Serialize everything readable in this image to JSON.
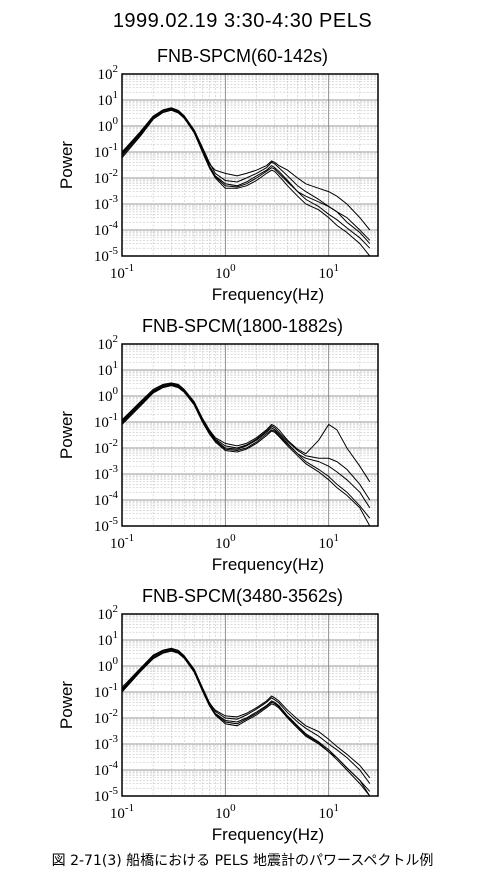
{
  "figure": {
    "title": "1999.02.19 3:30-4:30  PELS",
    "caption": "図 2-71(3)  船橋における PELS 地震計のパワースペクトル例"
  },
  "chart_data": [
    {
      "type": "line",
      "title": "FNB-SPCM(60-142s)",
      "xlabel": "Frequency(Hz)",
      "ylabel": "Power",
      "x_scale": "log",
      "y_scale": "log",
      "xlim": [
        0.1,
        30
      ],
      "ylim": [
        1e-05,
        100
      ],
      "xticks": [
        "10-1",
        "100",
        "101"
      ],
      "yticks": [
        "102",
        "101",
        "100",
        "10-1",
        "10-2",
        "10-3",
        "10-4",
        "10-5"
      ],
      "grid": true,
      "series": [
        {
          "x": [
            0.1,
            0.15,
            0.2,
            0.25,
            0.3,
            0.35,
            0.4,
            0.5,
            0.6,
            0.7,
            0.8,
            1,
            1.3,
            1.6,
            2,
            2.5,
            2.8,
            3,
            3.3,
            4,
            5,
            6,
            8,
            10,
            12,
            15,
            20,
            25
          ],
          "y": [
            0.08,
            0.5,
            2,
            3.8,
            4.5,
            3.6,
            2.2,
            0.6,
            0.12,
            0.03,
            0.012,
            0.006,
            0.005,
            0.007,
            0.012,
            0.02,
            0.03,
            0.025,
            0.018,
            0.008,
            0.003,
            0.0015,
            0.0008,
            0.0004,
            0.00025,
            0.00012,
            5e-05,
            2e-05
          ]
        },
        {
          "x": [
            0.1,
            0.15,
            0.2,
            0.25,
            0.3,
            0.35,
            0.4,
            0.5,
            0.6,
            0.7,
            0.8,
            1,
            1.3,
            1.6,
            2,
            2.5,
            2.8,
            3,
            3.3,
            4,
            5,
            6,
            8,
            10,
            12,
            15,
            20,
            25
          ],
          "y": [
            0.1,
            0.6,
            2.4,
            4.2,
            5,
            4,
            2.5,
            0.7,
            0.15,
            0.04,
            0.015,
            0.008,
            0.007,
            0.01,
            0.015,
            0.025,
            0.04,
            0.035,
            0.025,
            0.012,
            0.005,
            0.003,
            0.0015,
            0.0008,
            0.0005,
            0.0002,
            8e-05,
            3e-05
          ]
        },
        {
          "x": [
            0.1,
            0.15,
            0.2,
            0.25,
            0.3,
            0.35,
            0.4,
            0.5,
            0.6,
            0.7,
            0.8,
            1,
            1.3,
            1.6,
            2,
            2.5,
            2.8,
            3,
            3.3,
            4,
            5,
            6,
            8,
            10,
            12,
            15,
            20,
            25
          ],
          "y": [
            0.06,
            0.4,
            1.8,
            3.3,
            4,
            3.2,
            2,
            0.55,
            0.1,
            0.025,
            0.01,
            0.004,
            0.004,
            0.005,
            0.008,
            0.015,
            0.02,
            0.018,
            0.012,
            0.005,
            0.002,
            0.001,
            0.0006,
            0.0003,
            0.00015,
            8e-05,
            3e-05,
            1e-05
          ]
        },
        {
          "x": [
            0.1,
            0.15,
            0.2,
            0.25,
            0.3,
            0.35,
            0.4,
            0.5,
            0.6,
            0.7,
            0.8,
            1,
            1.3,
            1.6,
            2,
            2.5,
            2.8,
            3,
            3.3,
            4,
            5,
            6,
            8,
            10,
            12,
            15,
            20,
            25
          ],
          "y": [
            0.09,
            0.55,
            2.2,
            4,
            4.8,
            3.8,
            2.3,
            0.65,
            0.14,
            0.035,
            0.02,
            0.015,
            0.012,
            0.015,
            0.02,
            0.03,
            0.045,
            0.04,
            0.03,
            0.02,
            0.01,
            0.006,
            0.004,
            0.003,
            0.002,
            0.001,
            0.0003,
            0.0001
          ]
        },
        {
          "x": [
            0.1,
            0.15,
            0.2,
            0.25,
            0.3,
            0.35,
            0.4,
            0.5,
            0.6,
            0.7,
            0.8,
            1,
            1.3,
            1.6,
            2,
            2.5,
            2.8,
            3,
            3.3,
            4,
            5,
            6,
            8,
            10,
            12,
            15,
            20,
            25
          ],
          "y": [
            0.07,
            0.45,
            1.9,
            3.5,
            4.2,
            3.4,
            2.1,
            0.58,
            0.11,
            0.028,
            0.011,
            0.005,
            0.0045,
            0.006,
            0.01,
            0.018,
            0.025,
            0.022,
            0.015,
            0.007,
            0.003,
            0.002,
            0.0012,
            0.0008,
            0.0005,
            0.0003,
            0.0001,
            4e-05
          ]
        }
      ]
    },
    {
      "type": "line",
      "title": "FNB-SPCM(1800-1882s)",
      "xlabel": "Frequency(Hz)",
      "ylabel": "Power",
      "x_scale": "log",
      "y_scale": "log",
      "xlim": [
        0.1,
        30
      ],
      "ylim": [
        1e-05,
        100
      ],
      "xticks": [
        "10-1",
        "100",
        "101"
      ],
      "yticks": [
        "102",
        "101",
        "100",
        "10-1",
        "10-2",
        "10-3",
        "10-4",
        "10-5"
      ],
      "grid": true,
      "series": [
        {
          "x": [
            0.1,
            0.15,
            0.2,
            0.25,
            0.3,
            0.35,
            0.4,
            0.5,
            0.6,
            0.7,
            0.8,
            1,
            1.3,
            1.6,
            2,
            2.5,
            2.8,
            3,
            3.3,
            4,
            5,
            6,
            8,
            10,
            12,
            15,
            20,
            25
          ],
          "y": [
            0.1,
            0.5,
            1.5,
            2.4,
            2.8,
            2.4,
            1.6,
            0.5,
            0.12,
            0.04,
            0.02,
            0.01,
            0.009,
            0.012,
            0.02,
            0.04,
            0.06,
            0.05,
            0.035,
            0.015,
            0.006,
            0.003,
            0.0015,
            0.0008,
            0.0004,
            0.0002,
            6e-05,
            2e-05
          ]
        },
        {
          "x": [
            0.1,
            0.15,
            0.2,
            0.25,
            0.3,
            0.35,
            0.4,
            0.5,
            0.6,
            0.7,
            0.8,
            1,
            1.3,
            1.6,
            2,
            2.5,
            2.8,
            3,
            3.3,
            4,
            5,
            6,
            8,
            10,
            12,
            15,
            20,
            25
          ],
          "y": [
            0.12,
            0.6,
            1.8,
            2.8,
            3.2,
            2.8,
            1.8,
            0.6,
            0.14,
            0.05,
            0.025,
            0.015,
            0.012,
            0.015,
            0.025,
            0.05,
            0.08,
            0.07,
            0.05,
            0.02,
            0.009,
            0.006,
            0.02,
            0.08,
            0.05,
            0.01,
            0.002,
            0.0005
          ]
        },
        {
          "x": [
            0.1,
            0.15,
            0.2,
            0.25,
            0.3,
            0.35,
            0.4,
            0.5,
            0.6,
            0.7,
            0.8,
            1,
            1.3,
            1.6,
            2,
            2.5,
            2.8,
            3,
            3.3,
            4,
            5,
            6,
            8,
            10,
            12,
            15,
            20,
            25
          ],
          "y": [
            0.08,
            0.4,
            1.3,
            2.1,
            2.5,
            2.1,
            1.4,
            0.45,
            0.1,
            0.035,
            0.017,
            0.008,
            0.007,
            0.009,
            0.015,
            0.03,
            0.045,
            0.04,
            0.028,
            0.012,
            0.005,
            0.0025,
            0.0012,
            0.0006,
            0.0003,
            0.00015,
            5e-05,
            1e-05
          ]
        },
        {
          "x": [
            0.1,
            0.15,
            0.2,
            0.25,
            0.3,
            0.35,
            0.4,
            0.5,
            0.6,
            0.7,
            0.8,
            1,
            1.3,
            1.6,
            2,
            2.5,
            2.8,
            3,
            3.3,
            4,
            5,
            6,
            8,
            10,
            12,
            15,
            20,
            25
          ],
          "y": [
            0.11,
            0.55,
            1.6,
            2.6,
            3,
            2.6,
            1.7,
            0.55,
            0.13,
            0.045,
            0.022,
            0.012,
            0.01,
            0.013,
            0.022,
            0.045,
            0.07,
            0.06,
            0.04,
            0.018,
            0.008,
            0.005,
            0.004,
            0.004,
            0.003,
            0.0015,
            0.0004,
            0.0001
          ]
        },
        {
          "x": [
            0.1,
            0.15,
            0.2,
            0.25,
            0.3,
            0.35,
            0.4,
            0.5,
            0.6,
            0.7,
            0.8,
            1,
            1.3,
            1.6,
            2,
            2.5,
            2.8,
            3,
            3.3,
            4,
            5,
            6,
            8,
            10,
            12,
            15,
            20,
            25
          ],
          "y": [
            0.09,
            0.45,
            1.4,
            2.2,
            2.6,
            2.2,
            1.5,
            0.48,
            0.11,
            0.038,
            0.019,
            0.009,
            0.008,
            0.01,
            0.017,
            0.035,
            0.05,
            0.045,
            0.03,
            0.014,
            0.006,
            0.004,
            0.003,
            0.002,
            0.0012,
            0.0006,
            0.0002,
            5e-05
          ]
        }
      ]
    },
    {
      "type": "line",
      "title": "FNB-SPCM(3480-3562s)",
      "xlabel": "Frequency(Hz)",
      "ylabel": "Power",
      "x_scale": "log",
      "y_scale": "log",
      "xlim": [
        0.1,
        30
      ],
      "ylim": [
        1e-05,
        100
      ],
      "xticks": [
        "10-1",
        "100",
        "101"
      ],
      "yticks": [
        "102",
        "101",
        "100",
        "10-1",
        "10-2",
        "10-3",
        "10-4",
        "10-5"
      ],
      "grid": true,
      "series": [
        {
          "x": [
            0.1,
            0.15,
            0.2,
            0.25,
            0.3,
            0.35,
            0.4,
            0.5,
            0.6,
            0.7,
            0.8,
            1,
            1.3,
            1.6,
            2,
            2.5,
            2.8,
            3,
            3.3,
            4,
            5,
            6,
            8,
            10,
            12,
            15,
            20,
            25
          ],
          "y": [
            0.12,
            0.7,
            2.2,
            3.6,
            4.2,
            3.5,
            2.2,
            0.65,
            0.13,
            0.035,
            0.015,
            0.008,
            0.007,
            0.01,
            0.017,
            0.03,
            0.045,
            0.04,
            0.03,
            0.012,
            0.005,
            0.0025,
            0.0012,
            0.0006,
            0.0003,
            0.00012,
            4e-05,
            1e-05
          ]
        },
        {
          "x": [
            0.1,
            0.15,
            0.2,
            0.25,
            0.3,
            0.35,
            0.4,
            0.5,
            0.6,
            0.7,
            0.8,
            1,
            1.3,
            1.6,
            2,
            2.5,
            2.8,
            3,
            3.3,
            4,
            5,
            6,
            8,
            10,
            12,
            15,
            20,
            25
          ],
          "y": [
            0.15,
            0.8,
            2.6,
            4.1,
            4.8,
            4,
            2.5,
            0.75,
            0.15,
            0.04,
            0.018,
            0.01,
            0.009,
            0.013,
            0.022,
            0.04,
            0.06,
            0.05,
            0.038,
            0.016,
            0.007,
            0.004,
            0.002,
            0.001,
            0.0006,
            0.0003,
            0.0001,
            3e-05
          ]
        },
        {
          "x": [
            0.1,
            0.15,
            0.2,
            0.25,
            0.3,
            0.35,
            0.4,
            0.5,
            0.6,
            0.7,
            0.8,
            1,
            1.3,
            1.6,
            2,
            2.5,
            2.8,
            3,
            3.3,
            4,
            5,
            6,
            8,
            10,
            12,
            15,
            20,
            25
          ],
          "y": [
            0.1,
            0.6,
            1.9,
            3.1,
            3.7,
            3.1,
            2,
            0.58,
            0.11,
            0.03,
            0.013,
            0.006,
            0.005,
            0.008,
            0.013,
            0.025,
            0.035,
            0.032,
            0.024,
            0.01,
            0.004,
            0.002,
            0.001,
            0.0005,
            0.00025,
            0.0001,
            3e-05,
            1e-05
          ]
        },
        {
          "x": [
            0.1,
            0.15,
            0.2,
            0.25,
            0.3,
            0.35,
            0.4,
            0.5,
            0.6,
            0.7,
            0.8,
            1,
            1.3,
            1.6,
            2,
            2.5,
            2.8,
            3,
            3.3,
            4,
            5,
            6,
            8,
            10,
            12,
            15,
            20,
            25
          ],
          "y": [
            0.13,
            0.75,
            2.4,
            3.9,
            4.5,
            3.8,
            2.4,
            0.7,
            0.14,
            0.038,
            0.02,
            0.012,
            0.011,
            0.015,
            0.025,
            0.045,
            0.07,
            0.06,
            0.045,
            0.02,
            0.009,
            0.005,
            0.003,
            0.0015,
            0.0008,
            0.0004,
            0.00015,
            5e-05
          ]
        },
        {
          "x": [
            0.1,
            0.15,
            0.2,
            0.25,
            0.3,
            0.35,
            0.4,
            0.5,
            0.6,
            0.7,
            0.8,
            1,
            1.3,
            1.6,
            2,
            2.5,
            2.8,
            3,
            3.3,
            4,
            5,
            6,
            8,
            10,
            12,
            15,
            20,
            25
          ],
          "y": [
            0.11,
            0.65,
            2,
            3.3,
            3.9,
            3.3,
            2.1,
            0.6,
            0.12,
            0.032,
            0.014,
            0.007,
            0.006,
            0.009,
            0.015,
            0.028,
            0.04,
            0.036,
            0.027,
            0.011,
            0.0045,
            0.0022,
            0.0011,
            0.0005,
            0.0003,
            0.00012,
            4e-05,
            1.5e-05
          ]
        }
      ]
    }
  ]
}
